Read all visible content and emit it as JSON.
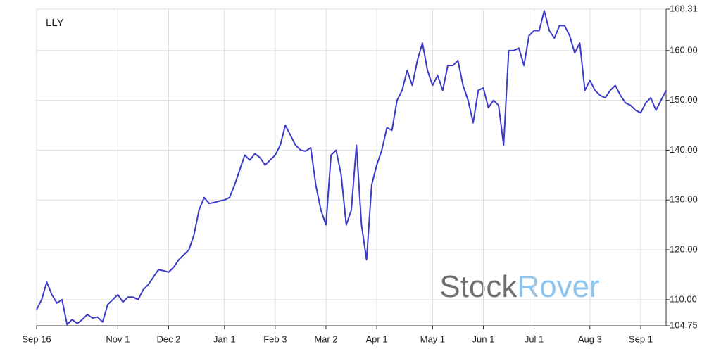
{
  "chart_data": {
    "type": "line",
    "watermark": {
      "left": "Stock",
      "right": "Rover"
    },
    "categories": [
      "Sep 16",
      null,
      null,
      null,
      null,
      null,
      null,
      null,
      null,
      null,
      null,
      null,
      null,
      null,
      null,
      null,
      "Nov 1",
      null,
      null,
      null,
      null,
      null,
      null,
      null,
      null,
      null,
      "Dec 2",
      null,
      null,
      null,
      null,
      null,
      null,
      null,
      null,
      null,
      null,
      "Jan 1",
      null,
      null,
      null,
      null,
      null,
      null,
      null,
      null,
      null,
      "Feb 3",
      null,
      null,
      null,
      null,
      null,
      null,
      null,
      null,
      null,
      "Mar 2",
      null,
      null,
      null,
      null,
      null,
      null,
      null,
      null,
      null,
      "Apr 1",
      null,
      null,
      null,
      null,
      null,
      null,
      null,
      null,
      null,
      null,
      "May 1",
      null,
      null,
      null,
      null,
      null,
      null,
      null,
      null,
      null,
      "Jun 1",
      null,
      null,
      null,
      null,
      null,
      null,
      null,
      null,
      null,
      "Jul 1",
      null,
      null,
      null,
      null,
      null,
      null,
      null,
      null,
      null,
      null,
      "Aug 3",
      null,
      null,
      null,
      null,
      null,
      null,
      null,
      null,
      null,
      "Sep 1",
      null,
      null,
      null,
      null,
      null
    ],
    "series": [
      {
        "name": "LLY",
        "color": "#3b3bc8",
        "values": [
          108,
          110,
          113.5,
          111,
          109.3,
          110,
          105,
          106,
          105.2,
          106,
          107,
          106.3,
          106.5,
          105.5,
          109,
          110,
          111,
          109.5,
          110.5,
          110.5,
          110,
          112,
          113,
          114.5,
          116,
          115.8,
          115.5,
          116.5,
          118,
          119,
          120,
          123,
          128,
          130.5,
          129.3,
          129.5,
          129.8,
          130,
          130.5,
          133,
          136,
          139,
          138,
          139.3,
          138.5,
          137,
          138,
          139,
          141,
          145,
          143,
          141,
          140,
          139.8,
          140.5,
          133,
          128,
          125,
          139,
          140,
          135,
          125,
          128,
          141,
          125,
          118,
          133,
          137,
          140,
          144.5,
          144,
          150,
          152,
          156,
          153,
          158,
          161.5,
          156,
          153,
          155,
          152,
          157,
          157,
          158,
          153,
          150,
          145.5,
          152,
          152.5,
          148.5,
          150,
          149,
          141,
          160,
          160,
          160.5,
          157,
          163,
          164,
          164,
          168,
          164,
          162.5,
          165,
          165,
          163,
          159.5,
          161.5,
          152,
          154,
          152,
          151,
          150.5,
          152,
          153,
          151,
          149.5,
          149,
          148,
          147.5,
          149.5,
          150.5,
          148,
          150,
          152
        ]
      }
    ],
    "ylim": [
      104.75,
      168.31
    ],
    "yticks": [
      104.75,
      {
        "value": 110,
        "label": "110.00"
      },
      {
        "value": 120,
        "label": "120.00"
      },
      {
        "value": 130,
        "label": "130.00"
      },
      {
        "value": 140,
        "label": "140.00"
      },
      {
        "value": 150,
        "label": "150.00"
      },
      {
        "value": 160,
        "label": "160.00"
      },
      168.31
    ],
    "grid": true
  }
}
